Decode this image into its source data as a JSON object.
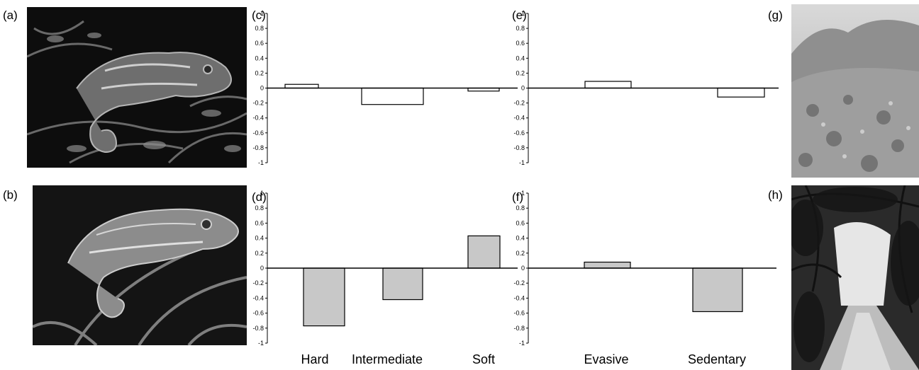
{
  "panel_labels": {
    "a": "(a)",
    "b": "(b)",
    "c": "(c)",
    "d": "(d)",
    "e": "(e)",
    "f": "(f)",
    "g": "(g)",
    "h": "(h)"
  },
  "colors": {
    "open_bar": "#ffffff",
    "filled_bar": "#c8c8c8",
    "bar_stroke": "#000000"
  },
  "chart_data": [
    {
      "id": "c",
      "type": "bar",
      "categories": [
        "Hard",
        "Intermediate",
        "Soft"
      ],
      "values": [
        0.05,
        -0.22,
        -0.04
      ],
      "ylim": [
        -1,
        1
      ],
      "yticks": [
        "1",
        "0.8",
        "0.6",
        "0.4",
        "0.2",
        "0",
        "-0.2",
        "-0.4",
        "-0.6",
        "-0.8",
        "-1"
      ],
      "title": "",
      "xlabel": "",
      "ylabel": "",
      "grid": false
    },
    {
      "id": "d",
      "type": "bar",
      "categories": [
        "Hard",
        "Intermediate",
        "Soft"
      ],
      "values": [
        -0.77,
        -0.42,
        0.43
      ],
      "ylim": [
        -1,
        1
      ],
      "yticks": [
        "1",
        "0.8",
        "0.6",
        "0.4",
        "0.2",
        "0",
        "-0.2",
        "-0.4",
        "-0.6",
        "-0.8",
        "-1"
      ],
      "title": "",
      "xlabel": "",
      "ylabel": "",
      "grid": false
    },
    {
      "id": "e",
      "type": "bar",
      "categories": [
        "Evasive",
        "Sedentary"
      ],
      "values": [
        0.09,
        -0.12
      ],
      "ylim": [
        -1,
        1
      ],
      "yticks": [
        "1",
        "0.8",
        "0.6",
        "0.4",
        "0.2",
        "0",
        "-0.2",
        "-0.4",
        "-0.6",
        "-0.8",
        "-1"
      ],
      "title": "",
      "xlabel": "",
      "ylabel": "",
      "grid": false
    },
    {
      "id": "f",
      "type": "bar",
      "categories": [
        "Evasive",
        "Sedentary"
      ],
      "values": [
        0.08,
        -0.58
      ],
      "ylim": [
        -1,
        1
      ],
      "yticks": [
        "1",
        "0.8",
        "0.6",
        "0.4",
        "0.2",
        "0",
        "-0.2",
        "-0.4",
        "-0.6",
        "-0.8",
        "-1"
      ],
      "title": "",
      "xlabel": "",
      "ylabel": "",
      "grid": false
    }
  ],
  "category_labels": {
    "left": [
      "Hard",
      "Intermediate",
      "Soft"
    ],
    "right": [
      "Evasive",
      "Sedentary"
    ]
  }
}
